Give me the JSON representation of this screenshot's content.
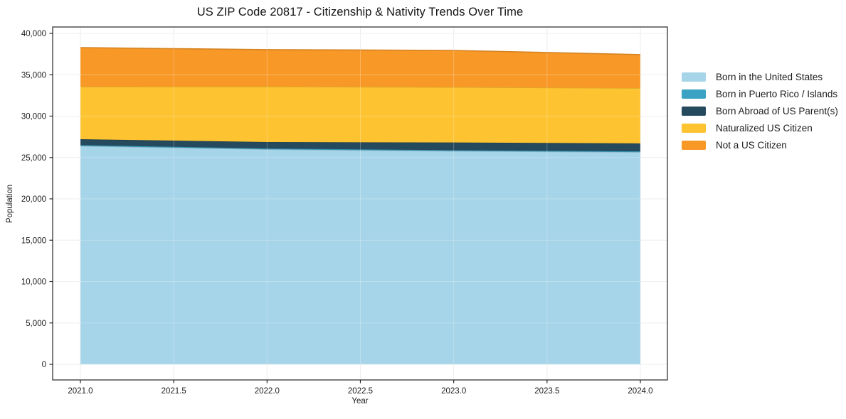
{
  "figure": {
    "background_color": "#ffffff",
    "spine_color": "#262626",
    "grid_color": "#e9e9e9",
    "tick_label_color": "#1c1c1c"
  },
  "chart_data": {
    "type": "area",
    "stacked": true,
    "title": "US ZIP Code 20817 - Citizenship & Nativity Trends Over Time",
    "xlabel": "Year",
    "ylabel": "Population",
    "x": [
      2021,
      2022,
      2023,
      2024
    ],
    "xticks": [
      2021.0,
      2021.5,
      2022.0,
      2022.5,
      2023.0,
      2023.5,
      2024.0
    ],
    "yticks": [
      0,
      5000,
      10000,
      15000,
      20000,
      25000,
      30000,
      35000,
      40000
    ],
    "xlim": [
      2021.0,
      2024.0
    ],
    "ylim": [
      0,
      40000
    ],
    "grid": true,
    "legend_position": "right-of-plot",
    "series": [
      {
        "name": "Born in the United States",
        "color": "#a6d4e8",
        "values": [
          26400,
          25990,
          25780,
          25650
        ]
      },
      {
        "name": "Born in Puerto Rico / Islands",
        "color": "#3aa2c3",
        "values": [
          100,
          100,
          100,
          100
        ]
      },
      {
        "name": "Born Abroad of US Parent(s)",
        "color": "#25495d",
        "values": [
          710,
          780,
          930,
          950
        ]
      },
      {
        "name": "Naturalized US Citizen",
        "color": "#fdc330",
        "values": [
          6350,
          6700,
          6690,
          6690
        ]
      },
      {
        "name": "Not a US Citizen",
        "color": "#f89827",
        "values": [
          4720,
          4460,
          4440,
          4040
        ]
      }
    ],
    "stacked_totals": [
      38280,
      38030,
      37940,
      37430
    ]
  }
}
